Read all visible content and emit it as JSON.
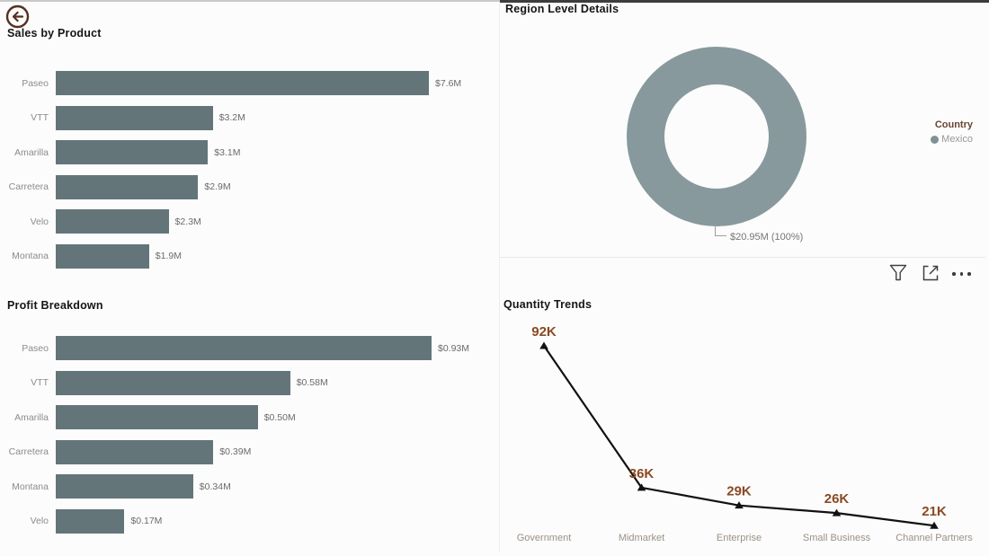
{
  "icons": {
    "back": "back-arrow-icon",
    "filter": "filter-icon",
    "focus": "focus-mode-icon",
    "more": "more-options-icon"
  },
  "colors": {
    "bar": "#64757a",
    "donut": "#87999c",
    "line": "#111111",
    "data_label": "#8a4a22",
    "legend_title": "#6a4632",
    "legend_text": "#979797",
    "category_axis": "#8c8c8c",
    "value_label": "#6b6b6b",
    "x_axis_label": "#9b9186",
    "page_border": "#5e2612",
    "back_button": "#553021"
  },
  "region_visual": {
    "legend_title": "Country",
    "legend_items": [
      "Mexico"
    ],
    "callout_label": "$20.95M (100%)"
  },
  "chart_data": [
    {
      "id": "sales",
      "type": "bar",
      "orientation": "horizontal",
      "title": "Sales by Product",
      "categories": [
        "Paseo",
        "VTT",
        "Amarilla",
        "Carretera",
        "Velo",
        "Montana"
      ],
      "values": [
        7.6,
        3.2,
        3.1,
        2.9,
        2.3,
        1.9
      ],
      "value_labels": [
        "$7.6M",
        "$3.2M",
        "$3.1M",
        "$2.9M",
        "$2.3M",
        "$1.9M"
      ],
      "unit": "USD millions",
      "xlim": [
        0,
        7.6
      ],
      "grid": false
    },
    {
      "id": "profit",
      "type": "bar",
      "orientation": "horizontal",
      "title": "Profit Breakdown",
      "categories": [
        "Paseo",
        "VTT",
        "Amarilla",
        "Carretera",
        "Montana",
        "Velo"
      ],
      "values": [
        0.93,
        0.58,
        0.5,
        0.39,
        0.34,
        0.17
      ],
      "value_labels": [
        "$0.93M",
        "$0.58M",
        "$0.50M",
        "$0.39M",
        "$0.34M",
        "$0.17M"
      ],
      "unit": "USD millions",
      "xlim": [
        0,
        0.93
      ],
      "grid": false
    },
    {
      "id": "region",
      "type": "pie",
      "subtype": "donut",
      "title": "Region Level Details",
      "categories": [
        "Mexico"
      ],
      "values": [
        20.95
      ],
      "value_labels": [
        "$20.95M (100%)"
      ],
      "unit": "USD millions",
      "legend_title": "Country",
      "legend_position": "right"
    },
    {
      "id": "quantity",
      "type": "line",
      "title": "Quantity Trends",
      "categories": [
        "Government",
        "Midmarket",
        "Enterprise",
        "Small Business",
        "Channel Partners"
      ],
      "values": [
        92,
        36,
        29,
        26,
        21
      ],
      "value_labels": [
        "92K",
        "36K",
        "29K",
        "26K",
        "21K"
      ],
      "unit": "thousand units",
      "ylim": [
        0,
        100
      ],
      "grid": false,
      "markers": "triangle"
    }
  ]
}
